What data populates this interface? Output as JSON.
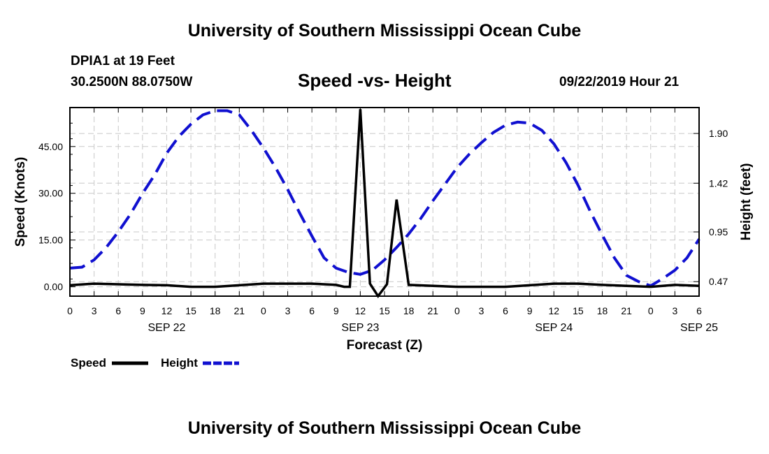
{
  "header": {
    "title": "University of Southern Mississippi Ocean Cube",
    "station": "DPIA1 at 19 Feet",
    "coordinates": "30.2500N 88.0750W",
    "datetime": "09/22/2019 Hour 21"
  },
  "footer": {
    "title": "University of Southern Mississippi Ocean Cube"
  },
  "colors": {
    "speed": "#000000",
    "height": "#1010d0",
    "grid": "#c8c8c8"
  },
  "chart_data": {
    "type": "line",
    "title": "Speed -vs- Height",
    "xlabel": "Forecast (Z)",
    "ylabel_left": "Speed (Knots)",
    "ylabel_right": "Height (feet)",
    "x_range_hours": [
      0,
      78
    ],
    "y_left_range": [
      -3,
      57.5
    ],
    "y_right_range": [
      0.33,
      2.15
    ],
    "y_left_ticks": [
      0,
      15,
      30,
      45
    ],
    "y_left_tick_labels": [
      "0.00",
      "15.00",
      "30.00",
      "45.00"
    ],
    "y_right_ticks": [
      0.47,
      0.95,
      1.42,
      1.9
    ],
    "y_right_tick_labels": [
      "0.47",
      "0.95",
      "1.42",
      "1.90"
    ],
    "x_ticks": [
      0,
      3,
      6,
      9,
      12,
      15,
      18,
      21,
      24,
      27,
      30,
      33,
      36,
      39,
      42,
      45,
      48,
      51,
      54,
      57,
      60,
      63,
      66,
      69,
      72,
      75,
      78
    ],
    "x_tick_labels": [
      "0",
      "3",
      "6",
      "9",
      "12",
      "15",
      "18",
      "21",
      "0",
      "3",
      "6",
      "9",
      "12",
      "15",
      "18",
      "21",
      "0",
      "3",
      "6",
      "9",
      "12",
      "15",
      "18",
      "21",
      "0",
      "3",
      "6"
    ],
    "date_labels": [
      {
        "hour": 12,
        "label": "SEP 22"
      },
      {
        "hour": 36,
        "label": "SEP 23"
      },
      {
        "hour": 60,
        "label": "SEP 24"
      },
      {
        "hour": 78,
        "label": "SEP 25"
      }
    ],
    "legend": {
      "placement": "bottom-left",
      "entries": [
        "Speed",
        "Height"
      ]
    },
    "series": [
      {
        "name": "Speed",
        "axis": "left",
        "style": "solid",
        "x": [
          0,
          3,
          6,
          9,
          12,
          15,
          18,
          21,
          24,
          27,
          30,
          33,
          34,
          34.7,
          36,
          37.2,
          38.2,
          39.3,
          40.5,
          42,
          45,
          48,
          51,
          54,
          57,
          60,
          63,
          66,
          69,
          72,
          75,
          78
        ],
        "values": [
          0.5,
          1.0,
          0.8,
          0.6,
          0.5,
          0.0,
          0.0,
          0.5,
          1.0,
          1.0,
          1.0,
          0.6,
          0.0,
          0.0,
          57.0,
          1.0,
          -3.0,
          0.8,
          28.0,
          0.6,
          0.3,
          0.0,
          0.0,
          0.0,
          0.5,
          1.0,
          1.0,
          0.6,
          0.3,
          0.0,
          0.6,
          0.3
        ]
      },
      {
        "name": "Height",
        "axis": "right",
        "style": "dashed",
        "x": [
          0,
          1.5,
          3,
          4.5,
          6,
          7.5,
          9,
          10.5,
          12,
          13.5,
          15,
          16.5,
          18,
          19.5,
          21,
          22.5,
          24,
          25.5,
          27,
          28.5,
          30,
          31.5,
          33,
          34.5,
          36,
          37.5,
          39,
          40.5,
          42,
          43.5,
          45,
          46.5,
          48,
          49.5,
          51,
          52.5,
          54,
          55.5,
          57,
          58.5,
          60,
          61.5,
          63,
          64.5,
          66,
          67.5,
          69,
          70.5,
          72,
          73.5,
          75,
          76.5,
          78
        ],
        "values": [
          0.6,
          0.61,
          0.68,
          0.8,
          0.95,
          1.12,
          1.32,
          1.5,
          1.71,
          1.87,
          1.99,
          2.08,
          2.12,
          2.12,
          2.08,
          1.93,
          1.76,
          1.57,
          1.36,
          1.13,
          0.91,
          0.7,
          0.6,
          0.56,
          0.54,
          0.58,
          0.68,
          0.8,
          0.93,
          1.08,
          1.25,
          1.41,
          1.57,
          1.7,
          1.81,
          1.91,
          1.98,
          2.01,
          2.0,
          1.93,
          1.8,
          1.62,
          1.4,
          1.15,
          0.92,
          0.7,
          0.53,
          0.47,
          0.43,
          0.5,
          0.58,
          0.7,
          0.88
        ]
      }
    ]
  }
}
